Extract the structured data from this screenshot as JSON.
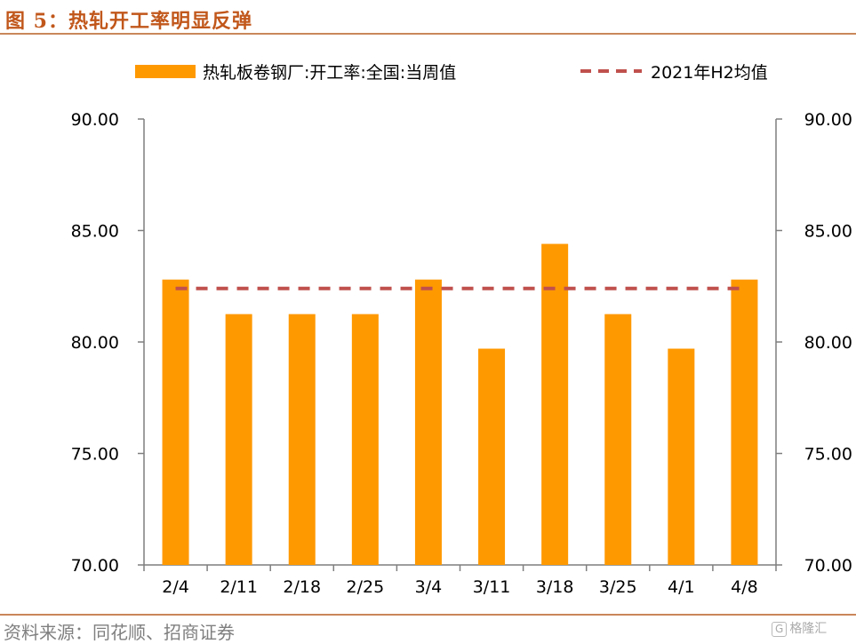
{
  "header": {
    "title": "图 5：热轧开工率明显反弹"
  },
  "footer": {
    "source": "资料来源：同花顺、招商证券",
    "watermark_logo": "G",
    "watermark_text": "格隆汇"
  },
  "colors": {
    "bar": "#FF9900",
    "avg_line": "#C0504D",
    "axis": "#7F7F7F",
    "title": "#C1571B",
    "rule": "#C9875A"
  },
  "chart_data": {
    "type": "bar",
    "categories": [
      "2/4",
      "2/11",
      "2/18",
      "2/25",
      "3/4",
      "3/11",
      "3/18",
      "3/25",
      "4/1",
      "4/8"
    ],
    "series": [
      {
        "name": "热轧板卷钢厂:开工率:全国:当周值",
        "type": "bar",
        "values": [
          82.8,
          81.25,
          81.25,
          81.25,
          82.8,
          79.7,
          84.4,
          81.25,
          79.7,
          82.8
        ]
      },
      {
        "name": "2021年H2均值",
        "type": "line",
        "style": "dashed",
        "values": [
          82.4,
          82.4,
          82.4,
          82.4,
          82.4,
          82.4,
          82.4,
          82.4,
          82.4,
          82.4
        ]
      }
    ],
    "ylim": [
      70,
      90
    ],
    "yticks": [
      "70.00",
      "75.00",
      "80.00",
      "85.00",
      "90.00"
    ],
    "y2ticks": [
      "70.00",
      "75.00",
      "80.00",
      "85.00",
      "90.00"
    ],
    "legend_position": "top",
    "grid": false
  }
}
